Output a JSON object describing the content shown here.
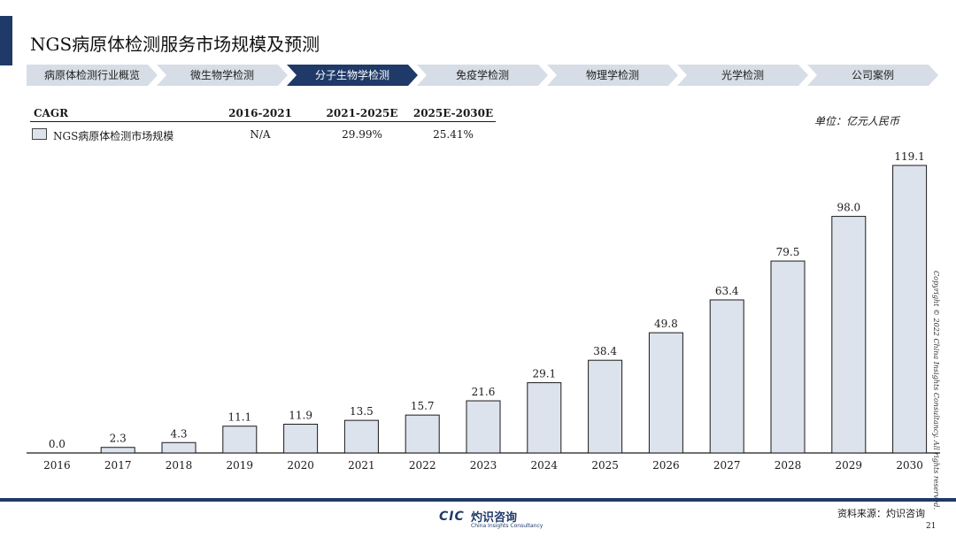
{
  "header": {
    "title": "NGS病原体检测服务市场规模及预测"
  },
  "nav": {
    "items": [
      {
        "label": "病原体检测行业概览",
        "active": false
      },
      {
        "label": "微生物学检测",
        "active": false
      },
      {
        "label": "分子生物学检测",
        "active": true
      },
      {
        "label": "免疫学检测",
        "active": false
      },
      {
        "label": "物理学检测",
        "active": false
      },
      {
        "label": "光学检测",
        "active": false
      },
      {
        "label": "公司案例",
        "active": false
      }
    ]
  },
  "cagr": {
    "headers": [
      "CAGR",
      "2016-2021",
      "2021-2025E",
      "2025E-2030E"
    ],
    "row": {
      "label": "NGS病原体检测市场规模",
      "values": [
        "N/A",
        "29.99%",
        "25.41%"
      ]
    }
  },
  "unit": "单位：亿元人民币",
  "copyright": "Copyright © 2022 China Insights Consultancy. All rights reserved.",
  "footer": {
    "logo_mark": "CIC",
    "logo_name": "灼识咨询",
    "logo_sub": "China Insights Consultancy",
    "source": "资料来源：灼识咨询",
    "page": "21"
  },
  "colors": {
    "brand": "#1f3a68",
    "bar_fill": "#dde3ec",
    "nav_inactive": "#d7dde6"
  },
  "chart_data": {
    "type": "bar",
    "categories": [
      "2016",
      "2017",
      "2018",
      "2019",
      "2020",
      "2021",
      "2022",
      "2023",
      "2024",
      "2025",
      "2026",
      "2027",
      "2028",
      "2029",
      "2030"
    ],
    "values": [
      0.0,
      2.3,
      4.3,
      11.1,
      11.9,
      13.5,
      15.7,
      21.6,
      29.1,
      38.4,
      49.8,
      63.4,
      79.5,
      98.0,
      119.1
    ],
    "value_labels": [
      "0.0",
      "2.3",
      "4.3",
      "11.1",
      "11.9",
      "13.5",
      "15.7",
      "21.6",
      "29.1",
      "38.4",
      "49.8",
      "63.4",
      "79.5",
      "98.0",
      "119.1"
    ],
    "ylim": [
      0,
      119.1
    ],
    "grid": false,
    "legend": "none"
  }
}
